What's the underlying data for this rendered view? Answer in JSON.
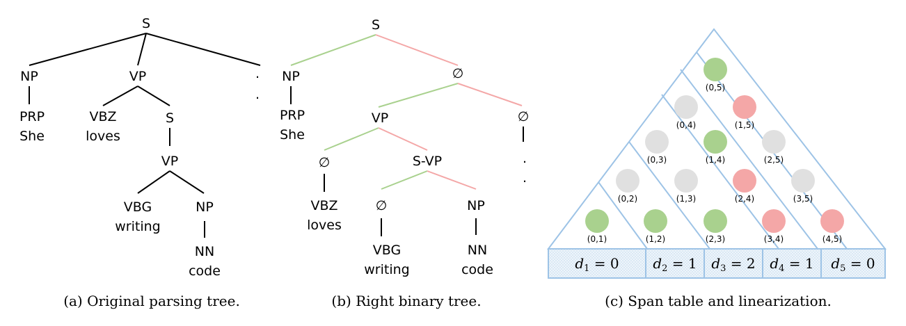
{
  "panel_a": {
    "caption": "(a)  Original parsing tree.",
    "labels": {
      "s_root": "S",
      "np": "NP",
      "vp": "VP",
      "dot": ".",
      "prp": "PRP",
      "she": "She",
      "vbz": "VBZ",
      "loves": "loves",
      "s_inner": "S",
      "vp_inner": "VP",
      "vbg": "VBG",
      "writing": "writing",
      "np_inner": "NP",
      "nn": "NN",
      "code": "code"
    }
  },
  "panel_b": {
    "caption": "(b)  Right binary tree.",
    "labels": {
      "s_root": "S",
      "np": "NP",
      "empty1": "∅",
      "prp": "PRP",
      "she": "She",
      "vp": "VP",
      "empty2": "∅",
      "dot": ".",
      "empty3": "∅",
      "svp": "S-VP",
      "vbz": "VBZ",
      "loves": "loves",
      "empty4": "∅",
      "np_inner": "NP",
      "vbg": "VBG",
      "writing": "writing",
      "nn": "NN",
      "code": "code"
    },
    "colors": {
      "left_edge": "#a9d18e",
      "right_edge": "#f4a7a7"
    }
  },
  "panel_c": {
    "caption": "(c)  Span table and linearization.",
    "spans": [
      {
        "label": "(0,1)",
        "color": "green"
      },
      {
        "label": "(1,2)",
        "color": "green"
      },
      {
        "label": "(2,3)",
        "color": "green"
      },
      {
        "label": "(3,4)",
        "color": "red"
      },
      {
        "label": "(4,5)",
        "color": "red"
      },
      {
        "label": "(0,2)",
        "color": "gray"
      },
      {
        "label": "(1,3)",
        "color": "gray"
      },
      {
        "label": "(2,4)",
        "color": "red"
      },
      {
        "label": "(3,5)",
        "color": "gray"
      },
      {
        "label": "(0,3)",
        "color": "gray"
      },
      {
        "label": "(1,4)",
        "color": "green"
      },
      {
        "label": "(2,5)",
        "color": "gray"
      },
      {
        "label": "(0,4)",
        "color": "gray"
      },
      {
        "label": "(1,5)",
        "color": "red"
      },
      {
        "label": "(0,5)",
        "color": "green"
      }
    ],
    "linearization": [
      {
        "var": "d",
        "sub": "1",
        "eq": " = 0"
      },
      {
        "var": "d",
        "sub": "2",
        "eq": " = 1"
      },
      {
        "var": "d",
        "sub": "3",
        "eq": " = 2"
      },
      {
        "var": "d",
        "sub": "4",
        "eq": " = 1"
      },
      {
        "var": "d",
        "sub": "5",
        "eq": " = 0"
      }
    ],
    "colors": {
      "green": "#a9d18e",
      "red": "#f4a7a7",
      "gray": "#e0e0e0",
      "outline": "#9dc3e6",
      "cell_fill": "#deebf7"
    }
  }
}
